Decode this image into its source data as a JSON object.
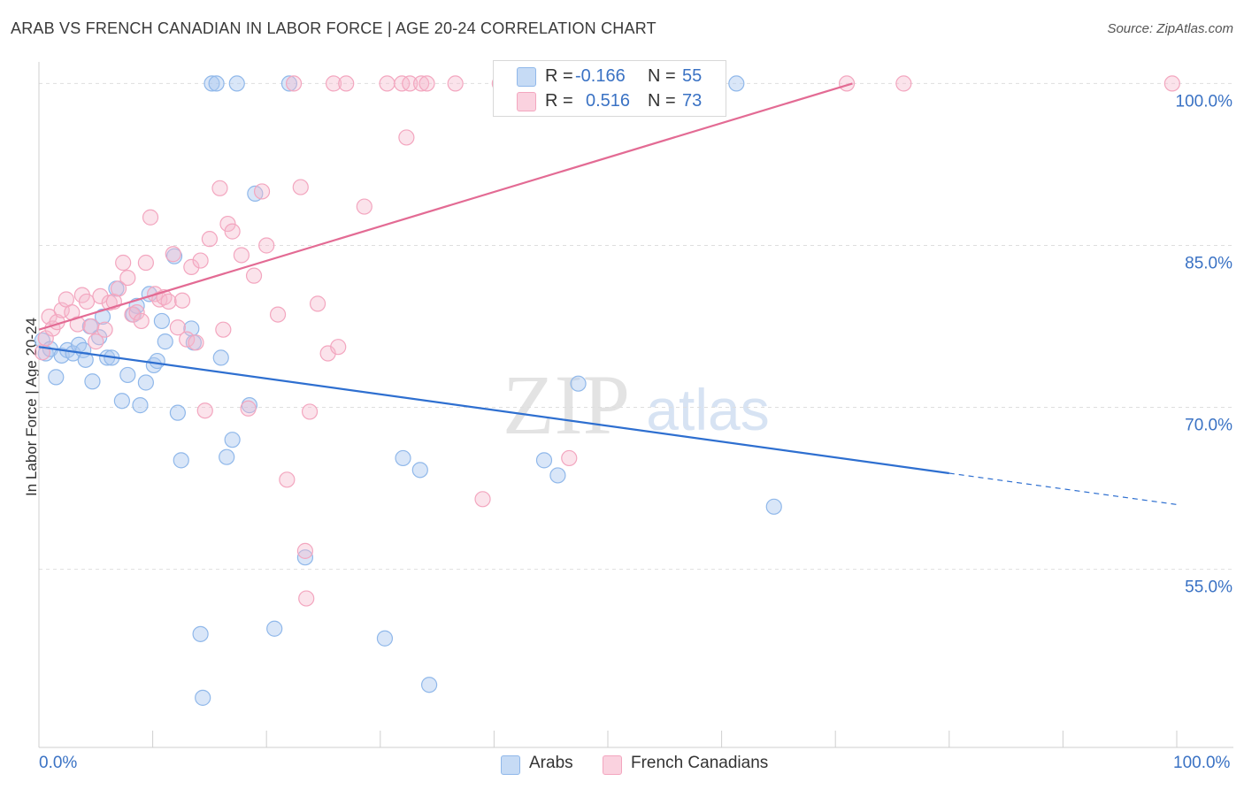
{
  "title": "ARAB VS FRENCH CANADIAN IN LABOR FORCE | AGE 20-24 CORRELATION CHART",
  "source": "Source: ZipAtlas.com",
  "watermark": {
    "zip": "ZIP",
    "atlas": "atlas"
  },
  "legend": {
    "rows": [
      {
        "r_label": "R =",
        "r_value": "-0.166",
        "n_label": "N =",
        "n_value": "55"
      },
      {
        "r_label": "R =",
        "r_value": "0.516",
        "n_label": "N =",
        "n_value": "73"
      }
    ]
  },
  "bottom_legend": [
    "Arabs",
    "French Canadians"
  ],
  "x_tick_labels": [
    "0.0%",
    "100.0%"
  ],
  "chart_data": {
    "type": "scatter",
    "title": "ARAB VS FRENCH CANADIAN IN LABOR FORCE | AGE 20-24 CORRELATION CHART",
    "xlabel": "",
    "ylabel": "In Labor Force | Age 20-24",
    "xlim": [
      0,
      100
    ],
    "ylim": [
      38.5,
      102
    ],
    "y_ticks": [
      {
        "value": 100,
        "label": "100.0%"
      },
      {
        "value": 85,
        "label": "85.0%"
      },
      {
        "value": 70,
        "label": "70.0%"
      },
      {
        "value": 55,
        "label": "55.0%"
      }
    ],
    "grid": true,
    "colors": {
      "arabs": "#90b8ea",
      "french": "#f3a6bf",
      "arabs_line": "#2e6fd0",
      "french_line": "#e36b94",
      "tick_text": "#3a72c4"
    },
    "series": [
      {
        "name": "Arabs",
        "points": [
          [
            0.3,
            76.2
          ],
          [
            0.6,
            75.0
          ],
          [
            1.0,
            75.4
          ],
          [
            1.5,
            72.8
          ],
          [
            2.0,
            74.8
          ],
          [
            2.5,
            75.3
          ],
          [
            3.0,
            75.0
          ],
          [
            3.5,
            75.8
          ],
          [
            3.9,
            75.3
          ],
          [
            4.1,
            74.4
          ],
          [
            4.5,
            77.5
          ],
          [
            4.7,
            72.4
          ],
          [
            5.3,
            76.5
          ],
          [
            5.6,
            78.4
          ],
          [
            6.0,
            74.6
          ],
          [
            6.4,
            74.6
          ],
          [
            6.8,
            81.0
          ],
          [
            7.3,
            70.6
          ],
          [
            7.8,
            73.0
          ],
          [
            8.3,
            78.6
          ],
          [
            8.6,
            79.4
          ],
          [
            8.9,
            70.2
          ],
          [
            9.4,
            72.3
          ],
          [
            9.7,
            80.5
          ],
          [
            10.1,
            73.9
          ],
          [
            10.4,
            74.3
          ],
          [
            10.8,
            78.0
          ],
          [
            11.1,
            76.1
          ],
          [
            11.9,
            84.0
          ],
          [
            12.2,
            69.5
          ],
          [
            12.5,
            65.1
          ],
          [
            13.4,
            77.3
          ],
          [
            13.6,
            76.0
          ],
          [
            14.2,
            49.0
          ],
          [
            14.4,
            43.1
          ],
          [
            15.2,
            100.0
          ],
          [
            15.6,
            100.0
          ],
          [
            16.0,
            74.6
          ],
          [
            16.5,
            65.4
          ],
          [
            17.0,
            67.0
          ],
          [
            17.4,
            100.0
          ],
          [
            18.5,
            70.2
          ],
          [
            19.0,
            89.8
          ],
          [
            20.7,
            49.5
          ],
          [
            22.0,
            100.0
          ],
          [
            23.4,
            56.1
          ],
          [
            30.4,
            48.6
          ],
          [
            32.0,
            65.3
          ],
          [
            33.5,
            64.2
          ],
          [
            34.3,
            44.3
          ],
          [
            44.4,
            65.1
          ],
          [
            45.6,
            63.7
          ],
          [
            47.4,
            72.2
          ],
          [
            61.3,
            100.0
          ],
          [
            64.6,
            60.8
          ]
        ]
      },
      {
        "name": "French Canadians",
        "points": [
          [
            0.3,
            75.1
          ],
          [
            0.6,
            76.4
          ],
          [
            0.9,
            78.4
          ],
          [
            1.2,
            77.3
          ],
          [
            1.6,
            77.9
          ],
          [
            2.0,
            79.0
          ],
          [
            2.4,
            80.0
          ],
          [
            2.9,
            78.8
          ],
          [
            3.4,
            77.7
          ],
          [
            3.8,
            80.4
          ],
          [
            4.2,
            79.8
          ],
          [
            4.6,
            77.5
          ],
          [
            5.0,
            76.1
          ],
          [
            5.4,
            80.3
          ],
          [
            5.8,
            77.2
          ],
          [
            6.2,
            79.7
          ],
          [
            6.6,
            79.8
          ],
          [
            7.0,
            81.0
          ],
          [
            7.4,
            83.4
          ],
          [
            7.8,
            82.0
          ],
          [
            8.2,
            78.6
          ],
          [
            8.6,
            78.8
          ],
          [
            9.0,
            78.0
          ],
          [
            9.4,
            83.4
          ],
          [
            9.8,
            87.6
          ],
          [
            10.2,
            80.5
          ],
          [
            10.6,
            80.0
          ],
          [
            11.0,
            80.2
          ],
          [
            11.4,
            79.8
          ],
          [
            11.8,
            84.2
          ],
          [
            12.2,
            77.4
          ],
          [
            12.6,
            79.9
          ],
          [
            13.0,
            76.3
          ],
          [
            13.4,
            83.0
          ],
          [
            13.8,
            76.0
          ],
          [
            14.2,
            83.6
          ],
          [
            14.6,
            69.7
          ],
          [
            15.0,
            85.6
          ],
          [
            15.9,
            90.3
          ],
          [
            16.2,
            77.2
          ],
          [
            16.6,
            87.0
          ],
          [
            17.0,
            86.3
          ],
          [
            17.8,
            84.1
          ],
          [
            18.4,
            69.9
          ],
          [
            18.9,
            82.2
          ],
          [
            19.6,
            90.0
          ],
          [
            20.0,
            85.0
          ],
          [
            21.0,
            78.6
          ],
          [
            21.8,
            63.3
          ],
          [
            22.4,
            100.0
          ],
          [
            23.0,
            90.4
          ],
          [
            23.4,
            56.7
          ],
          [
            23.5,
            52.3
          ],
          [
            23.8,
            69.6
          ],
          [
            24.5,
            79.6
          ],
          [
            25.4,
            75.0
          ],
          [
            25.9,
            100.0
          ],
          [
            26.3,
            75.6
          ],
          [
            27.0,
            100.0
          ],
          [
            28.6,
            88.6
          ],
          [
            30.6,
            100.0
          ],
          [
            31.9,
            100.0
          ],
          [
            32.3,
            95.0
          ],
          [
            32.6,
            100.0
          ],
          [
            33.6,
            100.0
          ],
          [
            34.1,
            100.0
          ],
          [
            36.6,
            100.0
          ],
          [
            39.0,
            61.5
          ],
          [
            40.5,
            100.0
          ],
          [
            46.6,
            65.3
          ],
          [
            71.0,
            100.0
          ],
          [
            76.0,
            100.0
          ],
          [
            99.6,
            100.0
          ]
        ]
      }
    ],
    "trend_lines": [
      {
        "series": "Arabs",
        "x": [
          0,
          80
        ],
        "y": [
          75.6,
          63.9
        ],
        "dashed_x": [
          80,
          100
        ],
        "dashed_y": [
          63.9,
          61.0
        ]
      },
      {
        "series": "French Canadians",
        "x": [
          0,
          71.5
        ],
        "y": [
          77.2,
          100.0
        ]
      }
    ]
  }
}
